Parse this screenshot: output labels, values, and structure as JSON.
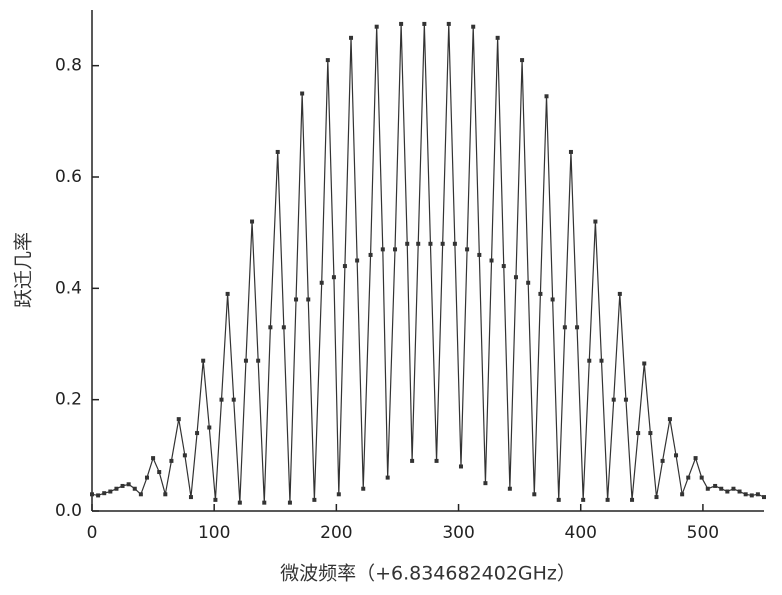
{
  "chart_data": {
    "type": "line",
    "x_label": "微波频率（+6.834682402GHz）",
    "y_label": "跃迁几率",
    "xlim": [
      0,
      550
    ],
    "xticks": [
      0,
      100,
      200,
      300,
      400,
      500
    ],
    "ylim": [
      0,
      0.9
    ],
    "yticks": [
      {
        "value": 0,
        "label": "0.0"
      },
      0.2,
      0.4,
      0.6,
      0.8
    ],
    "color": "#333333",
    "x": [
      0,
      5,
      10,
      15,
      20,
      25,
      30,
      35,
      40,
      45,
      50,
      55,
      60,
      65,
      71,
      76,
      81,
      86,
      91,
      96,
      101,
      106,
      111,
      116,
      121,
      126,
      131,
      136,
      141,
      146,
      152,
      157,
      162,
      167,
      172,
      177,
      182,
      188,
      193,
      198,
      202,
      207,
      212,
      217,
      222,
      228,
      233,
      238,
      242,
      248,
      253,
      258,
      262,
      267,
      272,
      277,
      282,
      287,
      292,
      297,
      302,
      307,
      312,
      317,
      322,
      327,
      332,
      337,
      342,
      347,
      352,
      357,
      362,
      367,
      372,
      377,
      382,
      387,
      392,
      397,
      402,
      407,
      412,
      417,
      422,
      427,
      432,
      437,
      442,
      447,
      452,
      457,
      462,
      467,
      473,
      478,
      483,
      488,
      494,
      499,
      504,
      510,
      515,
      520,
      525,
      530,
      535,
      540,
      545,
      550
    ],
    "values": [
      0.03,
      0.028,
      0.032,
      0.035,
      0.04,
      0.045,
      0.048,
      0.04,
      0.03,
      0.06,
      0.095,
      0.07,
      0.03,
      0.09,
      0.165,
      0.1,
      0.025,
      0.14,
      0.27,
      0.15,
      0.02,
      0.2,
      0.39,
      0.2,
      0.015,
      0.27,
      0.52,
      0.27,
      0.015,
      0.33,
      0.645,
      0.33,
      0.015,
      0.38,
      0.75,
      0.38,
      0.02,
      0.41,
      0.81,
      0.42,
      0.03,
      0.44,
      0.85,
      0.45,
      0.04,
      0.46,
      0.87,
      0.47,
      0.06,
      0.47,
      0.875,
      0.48,
      0.09,
      0.48,
      0.875,
      0.48,
      0.09,
      0.48,
      0.875,
      0.48,
      0.08,
      0.47,
      0.87,
      0.46,
      0.05,
      0.45,
      0.85,
      0.44,
      0.04,
      0.42,
      0.81,
      0.41,
      0.03,
      0.39,
      0.745,
      0.38,
      0.02,
      0.33,
      0.645,
      0.33,
      0.02,
      0.27,
      0.52,
      0.27,
      0.02,
      0.2,
      0.39,
      0.2,
      0.02,
      0.14,
      0.265,
      0.14,
      0.025,
      0.09,
      0.165,
      0.1,
      0.03,
      0.06,
      0.095,
      0.06,
      0.04,
      0.045,
      0.04,
      0.035,
      0.04,
      0.035,
      0.03,
      0.028,
      0.03,
      0.025
    ]
  }
}
